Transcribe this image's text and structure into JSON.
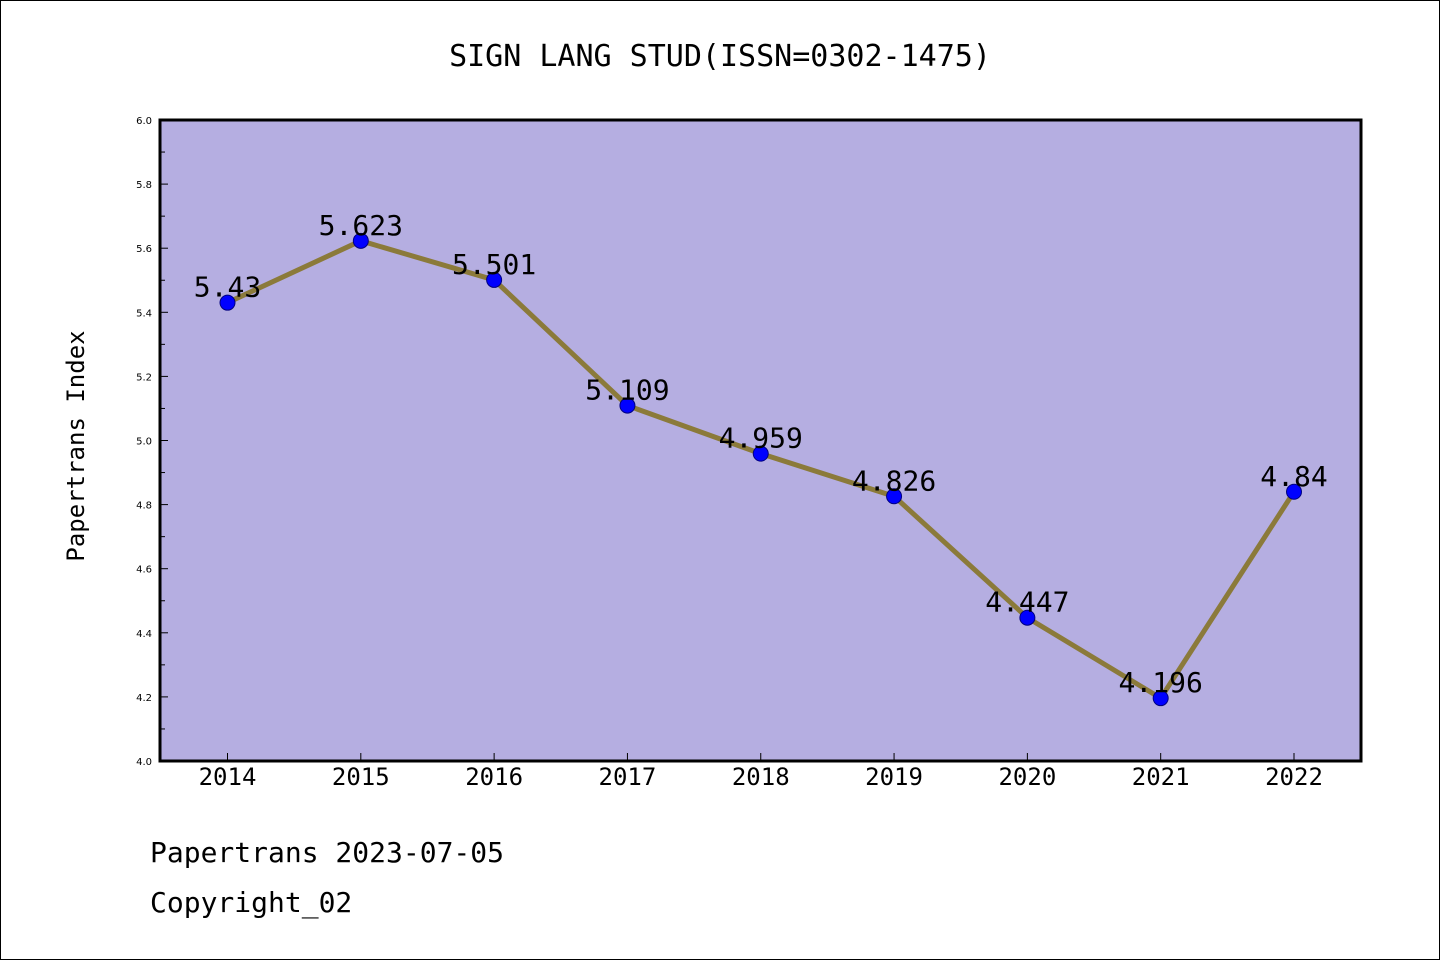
{
  "footer": {
    "date_line": "Papertrans 2023-07-05",
    "copyright_line": "Copyright_02"
  },
  "chart_data": {
    "type": "line",
    "title": "SIGN LANG STUD(ISSN=0302-1475)",
    "xlabel": "",
    "ylabel": "Papertrans Index",
    "categories": [
      "2014",
      "2015",
      "2016",
      "2017",
      "2018",
      "2019",
      "2020",
      "2021",
      "2022"
    ],
    "values": [
      5.43,
      5.623,
      5.501,
      5.109,
      4.959,
      4.826,
      4.447,
      4.196,
      4.84
    ],
    "data_labels": [
      "5.43",
      "5.623",
      "5.501",
      "5.109",
      "4.959",
      "4.826",
      "4.447",
      "4.196",
      "4.84"
    ],
    "ylim": [
      4.0,
      6.0
    ],
    "yticks": [
      "4.0",
      "4.2",
      "4.4",
      "4.6",
      "4.8",
      "5.0",
      "5.2",
      "5.4",
      "5.6",
      "5.8",
      "6.0"
    ],
    "grid": false,
    "legend": "none",
    "colors": {
      "plot_background": "#b5aee1",
      "line": "#8b7a3a",
      "marker": "#0000ff",
      "marker_edge": "#000080",
      "text": "#000000"
    }
  }
}
